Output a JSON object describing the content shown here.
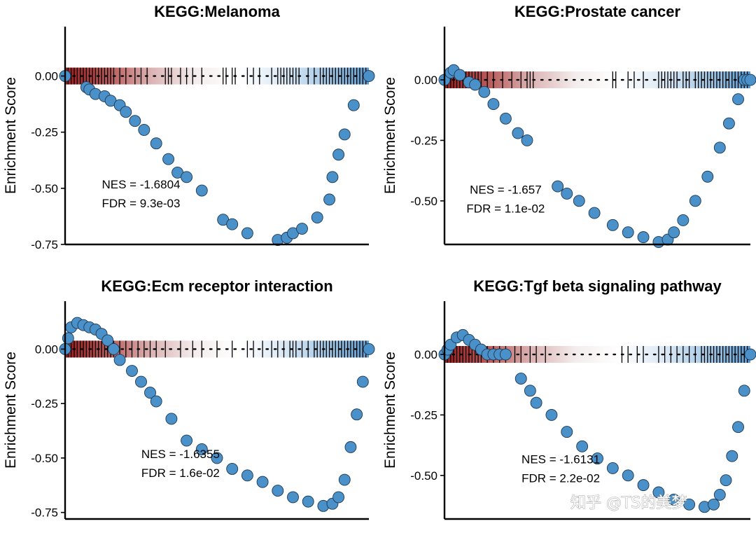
{
  "watermark": "知乎 @TS的美梦",
  "colors": {
    "point_fill": "#4a90c9",
    "point_stroke": "#1f3850",
    "gradient": [
      "#9b1c1c",
      "#b85a5a",
      "#dcb4b4",
      "#f4eded",
      "#ffffff",
      "#dce9f5",
      "#a9cbe8",
      "#5c99cd"
    ],
    "axis": "#000000",
    "hit_line": "#000000"
  },
  "chart_data": [
    {
      "type": "scatter",
      "title": "KEGG:Melanoma",
      "ylabel": "Enrichment Score",
      "xlabel": "",
      "ylim": [
        -0.75,
        0.22
      ],
      "yticks": [
        0.0,
        -0.25,
        -0.5,
        -0.75
      ],
      "ytick_labels": [
        "0.00",
        "-0.25",
        "-0.50",
        "-0.75"
      ],
      "xlim": [
        0,
        1
      ],
      "x": [
        0.0,
        0.07,
        0.08,
        0.1,
        0.13,
        0.15,
        0.18,
        0.2,
        0.23,
        0.26,
        0.3,
        0.34,
        0.37,
        0.4,
        0.45,
        0.52,
        0.55,
        0.6,
        0.7,
        0.73,
        0.75,
        0.78,
        0.83,
        0.87,
        0.88,
        0.9,
        0.92,
        0.95,
        1.0
      ],
      "y": [
        0.0,
        -0.05,
        -0.06,
        -0.08,
        -0.09,
        -0.11,
        -0.13,
        -0.16,
        -0.2,
        -0.24,
        -0.3,
        -0.37,
        -0.43,
        -0.45,
        -0.51,
        -0.64,
        -0.66,
        -0.7,
        -0.73,
        -0.72,
        -0.7,
        -0.68,
        -0.63,
        -0.55,
        -0.45,
        -0.35,
        -0.26,
        -0.13,
        0.0
      ],
      "hit_positions": [
        0.01,
        0.02,
        0.03,
        0.04,
        0.05,
        0.06,
        0.07,
        0.08,
        0.09,
        0.1,
        0.11,
        0.12,
        0.13,
        0.14,
        0.15,
        0.16,
        0.18,
        0.2,
        0.23,
        0.25,
        0.27,
        0.33,
        0.34,
        0.35,
        0.38,
        0.4,
        0.42,
        0.45,
        0.52,
        0.53,
        0.55,
        0.56,
        0.6,
        0.62,
        0.64,
        0.68,
        0.7,
        0.71,
        0.72,
        0.73,
        0.74,
        0.75,
        0.76,
        0.77,
        0.8,
        0.82,
        0.84,
        0.85,
        0.86,
        0.87,
        0.88,
        0.89,
        0.9,
        0.91,
        0.92,
        0.93,
        0.94,
        0.95,
        0.96,
        0.97,
        0.98,
        0.99
      ],
      "annotations": [
        "NES = -1.6804",
        "FDR = 9.3e-03"
      ],
      "annotation_anchor": [
        0.25,
        -0.5
      ]
    },
    {
      "type": "scatter",
      "title": "KEGG:Prostate cancer",
      "ylabel": "Enrichment Score",
      "xlabel": "",
      "ylim": [
        -0.68,
        0.22
      ],
      "yticks": [
        0.0,
        -0.25,
        -0.5
      ],
      "ytick_labels": [
        "0.00",
        "-0.25",
        "-0.50"
      ],
      "xlim": [
        0,
        1
      ],
      "x": [
        0.0,
        0.02,
        0.03,
        0.05,
        0.08,
        0.1,
        0.13,
        0.16,
        0.2,
        0.24,
        0.27,
        0.37,
        0.4,
        0.44,
        0.49,
        0.55,
        0.6,
        0.65,
        0.7,
        0.73,
        0.75,
        0.78,
        0.82,
        0.86,
        0.9,
        0.93,
        0.96,
        0.98,
        0.99,
        1.0
      ],
      "y": [
        0.0,
        0.03,
        0.04,
        0.02,
        -0.01,
        -0.02,
        -0.05,
        -0.1,
        -0.16,
        -0.22,
        -0.25,
        -0.44,
        -0.47,
        -0.5,
        -0.55,
        -0.6,
        -0.63,
        -0.65,
        -0.67,
        -0.66,
        -0.63,
        -0.58,
        -0.5,
        -0.4,
        -0.28,
        -0.18,
        -0.08,
        0.0,
        0.0,
        0.0
      ],
      "hit_positions": [
        0.01,
        0.02,
        0.03,
        0.04,
        0.05,
        0.06,
        0.07,
        0.08,
        0.09,
        0.1,
        0.11,
        0.12,
        0.14,
        0.16,
        0.19,
        0.22,
        0.25,
        0.27,
        0.28,
        0.29,
        0.55,
        0.56,
        0.6,
        0.62,
        0.65,
        0.7,
        0.71,
        0.72,
        0.73,
        0.74,
        0.75,
        0.76,
        0.78,
        0.79,
        0.8,
        0.82,
        0.83,
        0.84,
        0.85,
        0.86,
        0.87,
        0.88,
        0.89,
        0.9,
        0.91,
        0.92,
        0.93,
        0.94,
        0.95,
        0.96,
        0.97,
        0.98,
        0.99
      ],
      "annotations": [
        "NES = -1.657",
        "FDR = 1.1e-02"
      ],
      "annotation_anchor": [
        0.2,
        -0.47
      ]
    },
    {
      "type": "scatter",
      "title": "KEGG:Ecm receptor interaction",
      "ylabel": "Enrichment Score",
      "xlabel": "",
      "ylim": [
        -0.78,
        0.22
      ],
      "yticks": [
        0.0,
        -0.25,
        -0.5,
        -0.75
      ],
      "ytick_labels": [
        "0.00",
        "-0.25",
        "-0.50",
        "-0.75"
      ],
      "xlim": [
        0,
        1
      ],
      "x": [
        0.0,
        0.01,
        0.02,
        0.04,
        0.06,
        0.08,
        0.1,
        0.12,
        0.14,
        0.16,
        0.18,
        0.22,
        0.25,
        0.28,
        0.3,
        0.35,
        0.4,
        0.45,
        0.5,
        0.55,
        0.6,
        0.65,
        0.7,
        0.75,
        0.8,
        0.85,
        0.88,
        0.9,
        0.92,
        0.94,
        0.96,
        0.98,
        1.0
      ],
      "y": [
        0.0,
        0.05,
        0.1,
        0.12,
        0.11,
        0.1,
        0.09,
        0.07,
        0.04,
        0.0,
        -0.05,
        -0.1,
        -0.15,
        -0.2,
        -0.24,
        -0.32,
        -0.42,
        -0.46,
        -0.5,
        -0.55,
        -0.58,
        -0.61,
        -0.65,
        -0.68,
        -0.7,
        -0.72,
        -0.71,
        -0.68,
        -0.6,
        -0.45,
        -0.3,
        -0.15,
        0.0
      ],
      "hit_positions": [
        0.01,
        0.02,
        0.03,
        0.04,
        0.05,
        0.06,
        0.07,
        0.08,
        0.09,
        0.1,
        0.11,
        0.12,
        0.13,
        0.14,
        0.15,
        0.16,
        0.18,
        0.2,
        0.22,
        0.24,
        0.26,
        0.28,
        0.3,
        0.33,
        0.38,
        0.42,
        0.45,
        0.5,
        0.55,
        0.6,
        0.62,
        0.65,
        0.68,
        0.7,
        0.72,
        0.74,
        0.75,
        0.76,
        0.78,
        0.8,
        0.82,
        0.83,
        0.84,
        0.85,
        0.86,
        0.87,
        0.88,
        0.89,
        0.9,
        0.91,
        0.92,
        0.93,
        0.94,
        0.95,
        0.96,
        0.97,
        0.98,
        0.99
      ],
      "annotations": [
        "NES = -1.6355",
        "FDR = 1.6e-02"
      ],
      "annotation_anchor": [
        0.38,
        -0.5
      ]
    },
    {
      "type": "scatter",
      "title": "KEGG:Tgf beta signaling pathway",
      "ylabel": "Enrichment Score",
      "xlabel": "",
      "ylim": [
        -0.68,
        0.22
      ],
      "yticks": [
        0.0,
        -0.25,
        -0.5
      ],
      "ytick_labels": [
        "0.00",
        "-0.25",
        "-0.50"
      ],
      "xlim": [
        0,
        1
      ],
      "x": [
        0.0,
        0.01,
        0.02,
        0.04,
        0.06,
        0.08,
        0.1,
        0.12,
        0.14,
        0.16,
        0.18,
        0.2,
        0.25,
        0.28,
        0.3,
        0.35,
        0.4,
        0.45,
        0.5,
        0.55,
        0.6,
        0.65,
        0.7,
        0.75,
        0.8,
        0.85,
        0.88,
        0.9,
        0.92,
        0.94,
        0.96,
        0.98,
        1.0
      ],
      "y": [
        0.0,
        0.02,
        0.04,
        0.07,
        0.08,
        0.06,
        0.04,
        0.02,
        0.0,
        0.0,
        0.0,
        0.0,
        -0.1,
        -0.15,
        -0.2,
        -0.25,
        -0.32,
        -0.38,
        -0.43,
        -0.47,
        -0.5,
        -0.54,
        -0.57,
        -0.6,
        -0.62,
        -0.63,
        -0.62,
        -0.58,
        -0.52,
        -0.42,
        -0.3,
        -0.15,
        0.0
      ],
      "hit_positions": [
        0.01,
        0.02,
        0.03,
        0.04,
        0.05,
        0.06,
        0.07,
        0.08,
        0.09,
        0.1,
        0.11,
        0.12,
        0.14,
        0.16,
        0.18,
        0.2,
        0.23,
        0.25,
        0.28,
        0.3,
        0.33,
        0.58,
        0.6,
        0.63,
        0.65,
        0.7,
        0.72,
        0.74,
        0.76,
        0.78,
        0.8,
        0.82,
        0.84,
        0.85,
        0.86,
        0.87,
        0.88,
        0.89,
        0.9,
        0.91,
        0.92,
        0.93,
        0.94,
        0.95,
        0.96,
        0.97,
        0.98,
        0.99
      ],
      "annotations": [
        "NES = -1.6131",
        "FDR = 2.2e-02"
      ],
      "annotation_anchor": [
        0.38,
        -0.45
      ]
    }
  ]
}
